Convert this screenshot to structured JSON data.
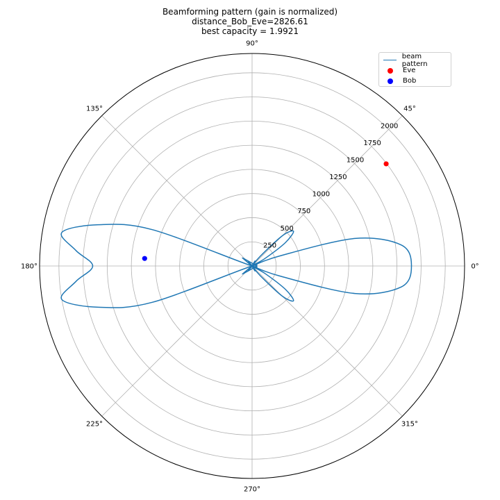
{
  "chart_data": {
    "type": "polar",
    "title_lines": [
      "Beamforming pattern (gain is normalized)",
      "distance_Bob_Eve=2826.61",
      "best capacity = 1.9921"
    ],
    "angle_ticks_deg": [
      0,
      45,
      90,
      135,
      180,
      225,
      270,
      315
    ],
    "angle_tick_labels": [
      "0°",
      "45°",
      "90°",
      "135°",
      "180°",
      "225°",
      "270°",
      "315°"
    ],
    "radial_ticks": [
      250,
      500,
      750,
      1000,
      1250,
      1500,
      1750,
      2000
    ],
    "radial_tick_labels": [
      "250",
      "500",
      "750",
      "1000",
      "1250",
      "1500",
      "1750",
      "2000"
    ],
    "rmax": 2200,
    "radial_label_angle_deg": 45,
    "grid": true,
    "legend_position": "top-right",
    "series": [
      {
        "name": "beam pattern",
        "kind": "line",
        "color": "#1f77b4",
        "theta_deg": [
          0,
          8,
          15,
          20,
          25,
          30,
          35,
          40,
          45,
          50,
          55,
          60,
          90,
          130,
          135,
          140,
          150,
          160,
          165,
          170,
          175,
          180,
          185,
          190,
          195,
          200,
          210,
          220,
          225,
          230,
          270,
          300,
          305,
          310,
          315,
          320,
          325,
          330,
          335,
          340,
          345,
          352,
          360
        ],
        "r": [
          1650,
          1560,
          1100,
          300,
          0,
          150,
          420,
          560,
          440,
          130,
          0,
          60,
          0,
          60,
          0,
          130,
          0,
          1100,
          1650,
          2000,
          1830,
          1650,
          1830,
          2000,
          1650,
          1100,
          0,
          130,
          0,
          60,
          0,
          60,
          0,
          130,
          440,
          560,
          420,
          150,
          0,
          300,
          1100,
          1560,
          1650
        ]
      },
      {
        "name": "Eve",
        "kind": "point",
        "color": "#ff0000",
        "theta_deg": [
          37.3
        ],
        "r": [
          1745
        ]
      },
      {
        "name": "Bob",
        "kind": "point",
        "color": "#0000ff",
        "theta_deg": [
          176
        ],
        "r": [
          1115
        ]
      }
    ]
  }
}
